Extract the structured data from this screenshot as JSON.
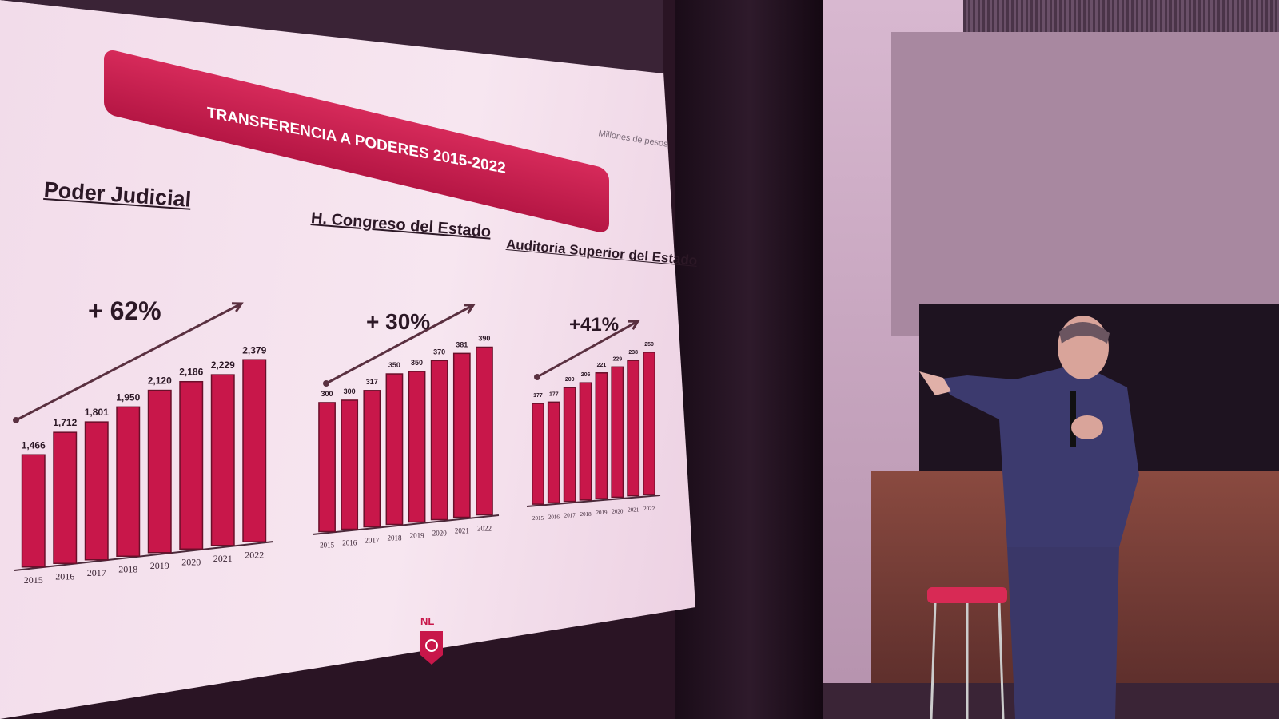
{
  "slide": {
    "title": "TRANSFERENCIA A PODERES 2015-2022",
    "units": "Millones de pesos",
    "logo_text": "NL"
  },
  "colors": {
    "bar": "#c8174a",
    "ribbon": "#c81e50",
    "arrow": "#5a3040"
  },
  "chart_data": [
    {
      "type": "bar",
      "title": "Poder Judicial",
      "annotation": "+ 62%",
      "categories": [
        "2015",
        "2016",
        "2017",
        "2018",
        "2019",
        "2020",
        "2021",
        "2022"
      ],
      "values": [
        1466,
        1712,
        1801,
        1950,
        2120,
        2186,
        2229,
        2379
      ],
      "labels": [
        "1,466",
        "1,712",
        "1,801",
        "1,950",
        "2,120",
        "2,186",
        "2,229",
        "2,379"
      ],
      "grid": false
    },
    {
      "type": "bar",
      "title": "H. Congreso del Estado",
      "annotation": "+ 30%",
      "categories": [
        "2015",
        "2016",
        "2017",
        "2018",
        "2019",
        "2020",
        "2021",
        "2022"
      ],
      "values": [
        300,
        300,
        317,
        350,
        350,
        370,
        381,
        390
      ],
      "labels": [
        "300",
        "300",
        "317",
        "350",
        "350",
        "370",
        "381",
        "390"
      ],
      "grid": false
    },
    {
      "type": "bar",
      "title": "Auditoria Superior del Estado",
      "annotation": "+41%",
      "categories": [
        "2015",
        "2016",
        "2017",
        "2018",
        "2019",
        "2020",
        "2021",
        "2022"
      ],
      "values": [
        177,
        177,
        200,
        206,
        221,
        229,
        238,
        250
      ],
      "labels": [
        "177",
        "177",
        "200",
        "206",
        "221",
        "229",
        "238",
        "250"
      ],
      "grid": false
    }
  ]
}
